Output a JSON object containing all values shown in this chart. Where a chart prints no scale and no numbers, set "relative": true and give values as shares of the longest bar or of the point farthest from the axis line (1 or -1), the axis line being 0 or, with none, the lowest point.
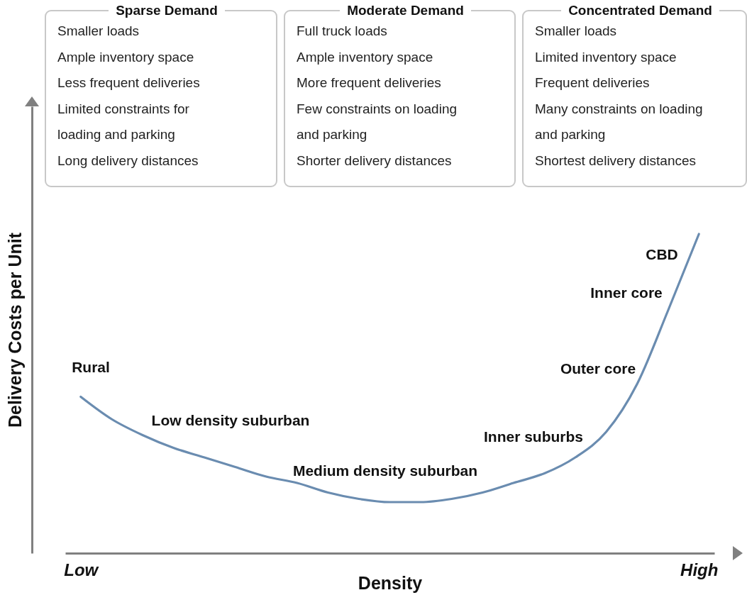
{
  "chart_data": [
    {
      "type": "other",
      "title": "Sparse Demand",
      "annotations": [
        "Smaller loads",
        "Ample inventory space",
        "Less frequent deliveries",
        "Limited constraints for loading and parking",
        "Long delivery distances"
      ]
    },
    {
      "type": "other",
      "title": "Moderate Demand",
      "annotations": [
        "Full truck loads",
        "Ample inventory space",
        "More frequent deliveries",
        "Few constraints on loading and parking",
        "Shorter delivery distances"
      ]
    },
    {
      "type": "other",
      "title": "Concentrated Demand",
      "annotations": [
        "Smaller loads",
        "Limited inventory space",
        "Frequent deliveries",
        "Many constraints on loading and parking",
        "Shortest delivery distances"
      ]
    },
    {
      "type": "line",
      "xlabel": "Density",
      "ylabel": "Delivery Costs per Unit",
      "relative": true,
      "categories": [
        "Low",
        null,
        null,
        null,
        null,
        null,
        null,
        null,
        null,
        null,
        null,
        null,
        null,
        null,
        null,
        null,
        null,
        null,
        null,
        null,
        "High"
      ],
      "series": [
        {
          "color": "#6a8cb0",
          "values": [
            0.49,
            0.42,
            0.37,
            0.33,
            0.3,
            0.27,
            0.24,
            0.22,
            0.19,
            0.17,
            0.16,
            0.16,
            0.17,
            0.19,
            0.22,
            0.25,
            0.3,
            0.38,
            0.53,
            0.76,
            1
          ]
        }
      ],
      "annotations": [
        "Rural",
        "Low density suburban",
        "Medium density suburban",
        "Inner suburbs",
        "Outer core",
        "Inner core",
        "CBD"
      ]
    }
  ]
}
